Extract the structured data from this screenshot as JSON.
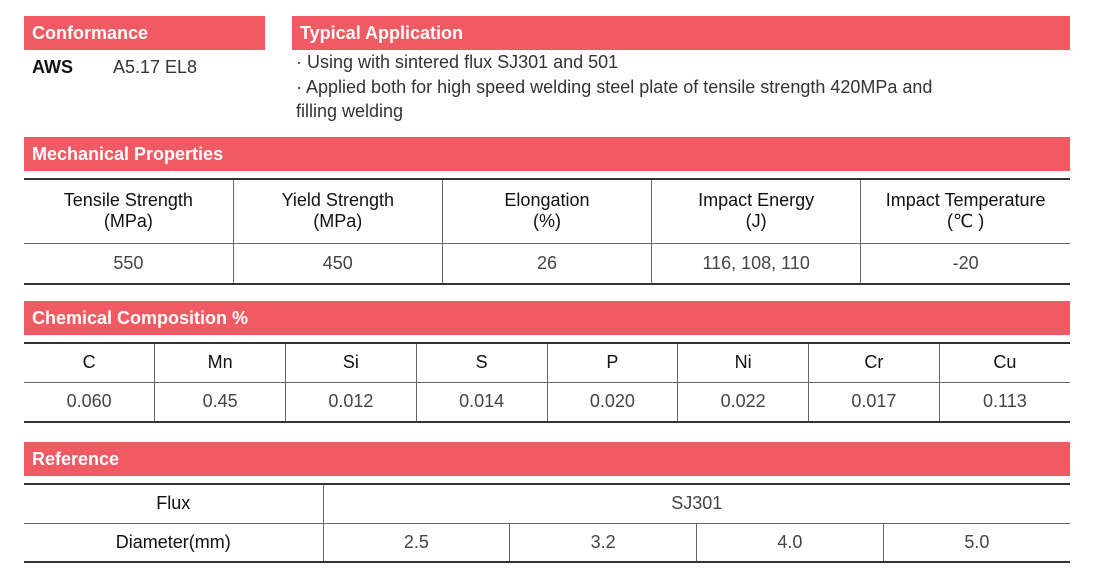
{
  "conformance": {
    "title": "Conformance",
    "label": "AWS",
    "value": "A5.17 EL8"
  },
  "application": {
    "title": "Typical Application",
    "line1": "· Using with sintered flux SJ301 and 501",
    "line2": "· Applied both for high speed welding steel plate of tensile strength 420MPa and",
    "line3": "filling welding"
  },
  "mechanical": {
    "title": "Mechanical Properties",
    "headers": [
      {
        "l1": "Tensile Strength",
        "l2": "(MPa)"
      },
      {
        "l1": "Yield Strength",
        "l2": "(MPa)"
      },
      {
        "l1": "Elongation",
        "l2": "(%)"
      },
      {
        "l1": "Impact Energy",
        "l2": "(J)"
      },
      {
        "l1": "Impact Temperature",
        "l2": "(℃ )"
      }
    ],
    "values": [
      "550",
      "450",
      "26",
      "116, 108, 110",
      "-20"
    ]
  },
  "chemical": {
    "title": "Chemical Composition %",
    "headers": [
      "C",
      "Mn",
      "Si",
      "S",
      "P",
      "Ni",
      "Cr",
      "Cu"
    ],
    "values": [
      "0.060",
      "0.45",
      "0.012",
      "0.014",
      "0.020",
      "0.022",
      "0.017",
      "0.113"
    ]
  },
  "reference": {
    "title": "Reference",
    "flux_label": "Flux",
    "flux_value": "SJ301",
    "diameter_label": "Diameter(mm)",
    "diameters": [
      "2.5",
      "3.2",
      "4.0",
      "5.0"
    ]
  }
}
